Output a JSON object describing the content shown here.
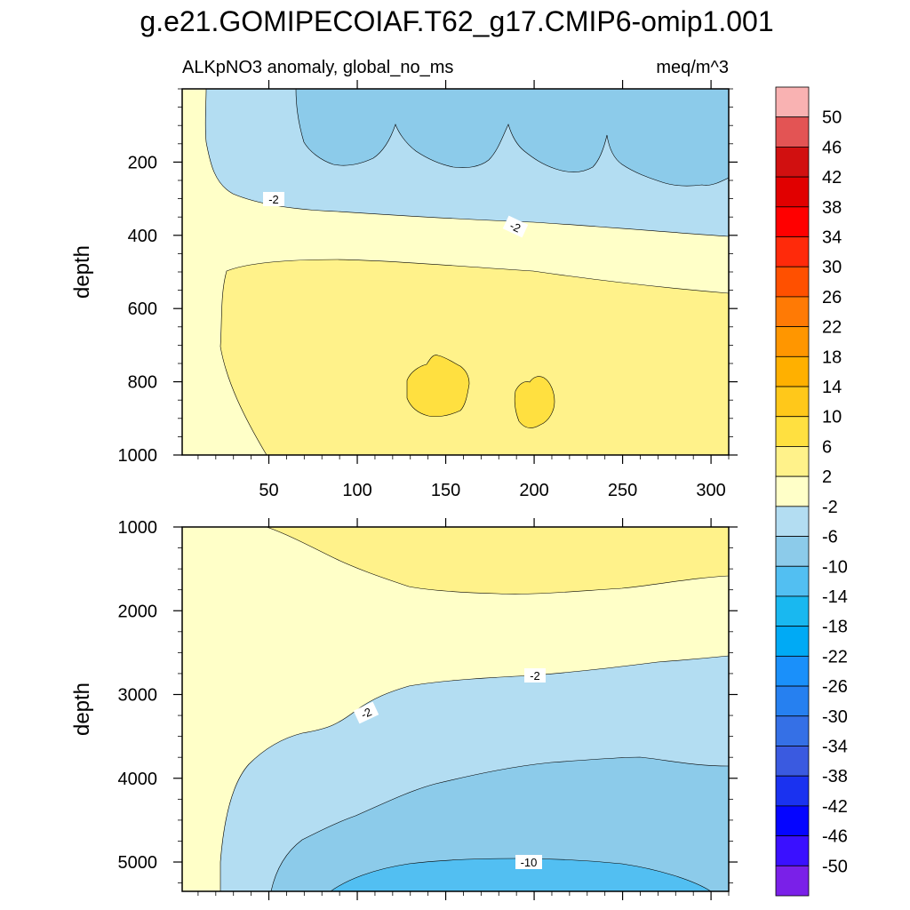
{
  "title": "g.e21.GOMIPECOIAF.T62_g17.CMIP6-omip1.001",
  "chart_data": [
    {
      "type": "contour",
      "panel": "upper",
      "left_string": "ALKpNO3 anomaly, global_no_ms",
      "right_string": "meq/m^3",
      "ylabel": "depth",
      "xlim": [
        1,
        310
      ],
      "ylim": [
        1000,
        0
      ],
      "xticks": [
        50,
        100,
        150,
        200,
        250,
        300
      ],
      "yticks": [
        200,
        400,
        600,
        800,
        1000
      ],
      "contour_labels": [
        "-2",
        "-2"
      ],
      "regions": [
        {
          "level_range": [
            -6,
            -2
          ],
          "description": "upper 300-400 m band"
        },
        {
          "level_range": [
            -10,
            -6
          ],
          "description": "near-surface patches, 0-250 m, x 65-310"
        },
        {
          "level_range": [
            -2,
            2
          ],
          "description": "near-surface and 350-550 m band"
        },
        {
          "level_range": [
            2,
            6
          ],
          "description": "main body 500-1000 m"
        },
        {
          "level_range": [
            6,
            10
          ],
          "description": "two patches near 800-900 m at x 130-165 and x 188-213"
        }
      ]
    },
    {
      "type": "contour",
      "panel": "lower",
      "ylabel": "depth",
      "xlim": [
        1,
        310
      ],
      "ylim": [
        5350,
        1000
      ],
      "xticks": [
        50,
        100,
        150,
        200,
        250,
        300
      ],
      "yticks": [
        1000,
        2000,
        3000,
        4000,
        5000
      ],
      "contour_labels": [
        "-2",
        "-2",
        "-10"
      ],
      "regions": [
        {
          "level_range": [
            2,
            6
          ],
          "description": "1000-1800 m, x 50-310"
        },
        {
          "level_range": [
            -2,
            2
          ],
          "description": "western column and 1800-2700 m band"
        },
        {
          "level_range": [
            -6,
            -2
          ],
          "description": "2700-4000 m"
        },
        {
          "level_range": [
            -10,
            -6
          ],
          "description": "4000-5000 m"
        },
        {
          "level_range": [
            -14,
            -10
          ],
          "description": "bottom near 5000-5350 m, x 85-300"
        }
      ]
    }
  ],
  "colorbar": {
    "labels": [
      "50",
      "46",
      "42",
      "38",
      "34",
      "30",
      "26",
      "22",
      "18",
      "14",
      "10",
      "6",
      "2",
      "-2",
      "-6",
      "-10",
      "-14",
      "-18",
      "-22",
      "-26",
      "-30",
      "-34",
      "-38",
      "-42",
      "-46",
      "-50"
    ],
    "colors": [
      "#f9b2b2",
      "#e35454",
      "#d11010",
      "#e10000",
      "#ff0000",
      "#ff2a0a",
      "#ff5000",
      "#ff7a05",
      "#ff9600",
      "#ffb000",
      "#ffc81a",
      "#ffe040",
      "#fff28a",
      "#ffffc8",
      "#b3ddf2",
      "#8ccbea",
      "#52bff2",
      "#19b8f0",
      "#00aaf5",
      "#1a90fa",
      "#2680f0",
      "#3570e6",
      "#3a5ae0",
      "#1a32f0",
      "#0505ff",
      "#3a10ff",
      "#7a20e8"
    ]
  },
  "fill_colors": {
    "lt_neg10": "#52bff2",
    "neg10_neg6": "#8ccbea",
    "neg6_neg2": "#b3ddf2",
    "neg2_2": "#ffffc8",
    "2_6": "#fff28a",
    "6_10": "#ffe040"
  }
}
